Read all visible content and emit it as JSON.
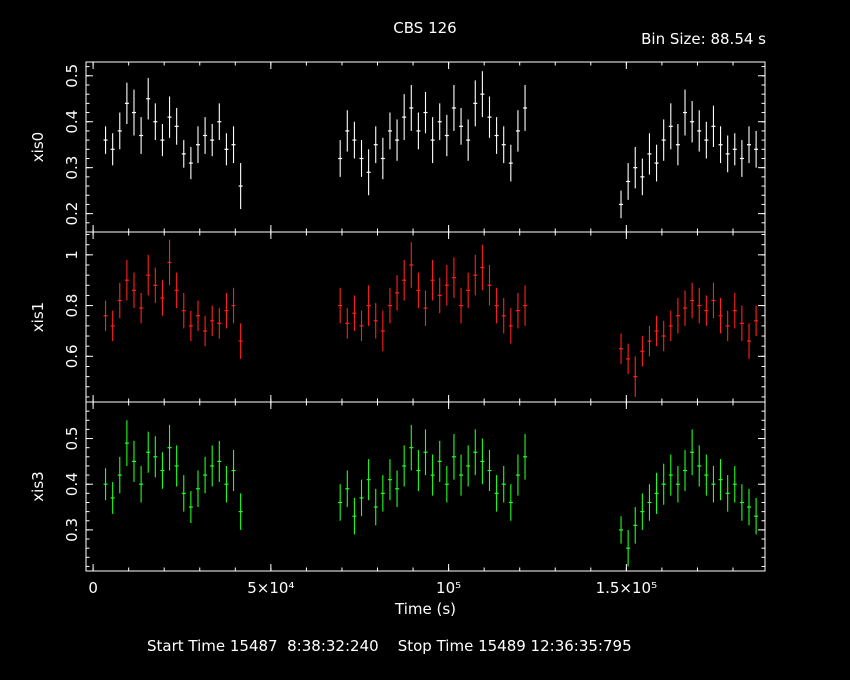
{
  "header": {
    "title": "CBS 126",
    "bin_size": "Bin Size: 88.54 s"
  },
  "footer": {
    "time_info": "Start Time 15487  8:38:32:240    Stop Time 15489 12:36:35:795"
  },
  "colors": {
    "background": "#000000",
    "axes": "#ffffff",
    "xis0": "#ffffff",
    "xis1": "#ff2020",
    "xis3": "#20ff20"
  },
  "chart_data": {
    "type": "scatter",
    "xlabel": "Time (s)",
    "xlim": [
      -2000,
      189000
    ],
    "x_ticks": [
      {
        "value": 0,
        "label": "0"
      },
      {
        "value": 50000,
        "label": "5×10⁴"
      },
      {
        "value": 100000,
        "label": "10⁵"
      },
      {
        "value": 150000,
        "label": "1.5×10⁵"
      }
    ],
    "grid": false,
    "series": [
      {
        "name": "xis0",
        "ylabel": "xis0",
        "ylim": [
          0.16,
          0.53
        ],
        "y_ticks": [
          {
            "value": 0.2,
            "label": "0.2"
          },
          {
            "value": 0.3,
            "label": "0.3"
          },
          {
            "value": 0.4,
            "label": "0.4"
          },
          {
            "value": 0.5,
            "label": "0.5"
          }
        ],
        "points": [
          [
            3500,
            0.36
          ],
          [
            5500,
            0.34
          ],
          [
            7500,
            0.38
          ],
          [
            9500,
            0.44
          ],
          [
            11500,
            0.42
          ],
          [
            13500,
            0.37
          ],
          [
            15500,
            0.45
          ],
          [
            17500,
            0.4
          ],
          [
            19500,
            0.36
          ],
          [
            21500,
            0.41
          ],
          [
            23500,
            0.39
          ],
          [
            25500,
            0.33
          ],
          [
            27500,
            0.31
          ],
          [
            29500,
            0.35
          ],
          [
            31500,
            0.37
          ],
          [
            33500,
            0.36
          ],
          [
            35500,
            0.4
          ],
          [
            37500,
            0.34
          ],
          [
            39500,
            0.35
          ],
          [
            41500,
            0.26
          ],
          [
            69500,
            0.32
          ],
          [
            71500,
            0.38
          ],
          [
            73500,
            0.36
          ],
          [
            75500,
            0.32
          ],
          [
            77500,
            0.29
          ],
          [
            79500,
            0.35
          ],
          [
            81500,
            0.32
          ],
          [
            83500,
            0.38
          ],
          [
            85500,
            0.36
          ],
          [
            87500,
            0.41
          ],
          [
            89500,
            0.43
          ],
          [
            91500,
            0.38
          ],
          [
            93500,
            0.42
          ],
          [
            95500,
            0.36
          ],
          [
            97500,
            0.4
          ],
          [
            99500,
            0.37
          ],
          [
            101500,
            0.43
          ],
          [
            103500,
            0.39
          ],
          [
            105500,
            0.36
          ],
          [
            107500,
            0.44
          ],
          [
            109500,
            0.46
          ],
          [
            111500,
            0.41
          ],
          [
            113500,
            0.37
          ],
          [
            115500,
            0.35
          ],
          [
            117500,
            0.31
          ],
          [
            119500,
            0.38
          ],
          [
            121500,
            0.43
          ],
          [
            148500,
            0.22
          ],
          [
            150500,
            0.27
          ],
          [
            152500,
            0.3
          ],
          [
            154500,
            0.28
          ],
          [
            156500,
            0.33
          ],
          [
            158500,
            0.31
          ],
          [
            160500,
            0.36
          ],
          [
            162500,
            0.39
          ],
          [
            164500,
            0.35
          ],
          [
            166500,
            0.42
          ],
          [
            168500,
            0.4
          ],
          [
            170500,
            0.38
          ],
          [
            172500,
            0.36
          ],
          [
            174500,
            0.39
          ],
          [
            176500,
            0.35
          ],
          [
            178500,
            0.33
          ],
          [
            180500,
            0.34
          ],
          [
            182500,
            0.32
          ],
          [
            184500,
            0.35
          ],
          [
            186500,
            0.34
          ]
        ],
        "errors": [
          0.03,
          0.035,
          0.04,
          0.045,
          0.05,
          0.04,
          0.045,
          0.04,
          0.035,
          0.045,
          0.04,
          0.03,
          0.035,
          0.04,
          0.04,
          0.035,
          0.04,
          0.035,
          0.04,
          0.05,
          0.04,
          0.045,
          0.04,
          0.04,
          0.05,
          0.04,
          0.045,
          0.04,
          0.045,
          0.05,
          0.05,
          0.04,
          0.045,
          0.05,
          0.04,
          0.045,
          0.05,
          0.04,
          0.045,
          0.05,
          0.05,
          0.045,
          0.04,
          0.04,
          0.04,
          0.045,
          0.05,
          0.03,
          0.04,
          0.045,
          0.04,
          0.045,
          0.04,
          0.045,
          0.05,
          0.045,
          0.05,
          0.045,
          0.045,
          0.04,
          0.045,
          0.04,
          0.04,
          0.035,
          0.04,
          0.04,
          0.04
        ]
      },
      {
        "name": "xis1",
        "ylabel": "xis1",
        "ylim": [
          0.42,
          1.09
        ],
        "y_ticks": [
          {
            "value": 0.6,
            "label": "0.6"
          },
          {
            "value": 0.8,
            "label": "0.8"
          },
          {
            "value": 1.0,
            "label": "1"
          }
        ],
        "points": [
          [
            3500,
            0.76
          ],
          [
            5500,
            0.72
          ],
          [
            7500,
            0.82
          ],
          [
            9500,
            0.9
          ],
          [
            11500,
            0.86
          ],
          [
            13500,
            0.79
          ],
          [
            15500,
            0.92
          ],
          [
            17500,
            0.88
          ],
          [
            19500,
            0.83
          ],
          [
            21500,
            0.97
          ],
          [
            23500,
            0.86
          ],
          [
            25500,
            0.78
          ],
          [
            27500,
            0.72
          ],
          [
            29500,
            0.76
          ],
          [
            31500,
            0.7
          ],
          [
            33500,
            0.74
          ],
          [
            35500,
            0.73
          ],
          [
            37500,
            0.78
          ],
          [
            39500,
            0.8
          ],
          [
            41500,
            0.66
          ],
          [
            69500,
            0.8
          ],
          [
            71500,
            0.73
          ],
          [
            73500,
            0.77
          ],
          [
            75500,
            0.72
          ],
          [
            77500,
            0.8
          ],
          [
            79500,
            0.74
          ],
          [
            81500,
            0.7
          ],
          [
            83500,
            0.8
          ],
          [
            85500,
            0.85
          ],
          [
            87500,
            0.9
          ],
          [
            89500,
            0.96
          ],
          [
            91500,
            0.86
          ],
          [
            93500,
            0.79
          ],
          [
            95500,
            0.9
          ],
          [
            97500,
            0.84
          ],
          [
            99500,
            0.88
          ],
          [
            101500,
            0.91
          ],
          [
            103500,
            0.8
          ],
          [
            105500,
            0.86
          ],
          [
            107500,
            0.92
          ],
          [
            109500,
            0.95
          ],
          [
            111500,
            0.88
          ],
          [
            113500,
            0.8
          ],
          [
            115500,
            0.76
          ],
          [
            117500,
            0.72
          ],
          [
            119500,
            0.78
          ],
          [
            121500,
            0.8
          ],
          [
            148500,
            0.63
          ],
          [
            150500,
            0.59
          ],
          [
            152500,
            0.52
          ],
          [
            154500,
            0.62
          ],
          [
            156500,
            0.66
          ],
          [
            158500,
            0.7
          ],
          [
            160500,
            0.68
          ],
          [
            162500,
            0.72
          ],
          [
            164500,
            0.76
          ],
          [
            166500,
            0.79
          ],
          [
            168500,
            0.82
          ],
          [
            170500,
            0.8
          ],
          [
            172500,
            0.78
          ],
          [
            174500,
            0.82
          ],
          [
            176500,
            0.76
          ],
          [
            178500,
            0.72
          ],
          [
            180500,
            0.78
          ],
          [
            182500,
            0.73
          ],
          [
            184500,
            0.66
          ],
          [
            186500,
            0.74
          ]
        ],
        "errors": [
          0.06,
          0.06,
          0.07,
          0.08,
          0.07,
          0.06,
          0.08,
          0.07,
          0.07,
          0.09,
          0.07,
          0.07,
          0.06,
          0.06,
          0.06,
          0.06,
          0.06,
          0.07,
          0.07,
          0.07,
          0.07,
          0.06,
          0.07,
          0.06,
          0.08,
          0.07,
          0.08,
          0.07,
          0.07,
          0.08,
          0.09,
          0.07,
          0.07,
          0.08,
          0.07,
          0.08,
          0.08,
          0.07,
          0.07,
          0.08,
          0.09,
          0.08,
          0.07,
          0.07,
          0.07,
          0.07,
          0.08,
          0.06,
          0.06,
          0.08,
          0.06,
          0.06,
          0.06,
          0.06,
          0.06,
          0.07,
          0.07,
          0.07,
          0.07,
          0.06,
          0.07,
          0.07,
          0.06,
          0.07,
          0.07,
          0.07,
          0.06
        ]
      },
      {
        "name": "xis3",
        "ylabel": "xis3",
        "ylim": [
          0.21,
          0.58
        ],
        "y_ticks": [
          {
            "value": 0.3,
            "label": "0.3"
          },
          {
            "value": 0.4,
            "label": "0.4"
          },
          {
            "value": 0.5,
            "label": "0.5"
          }
        ],
        "points": [
          [
            3500,
            0.4
          ],
          [
            5500,
            0.37
          ],
          [
            7500,
            0.42
          ],
          [
            9500,
            0.49
          ],
          [
            11500,
            0.45
          ],
          [
            13500,
            0.4
          ],
          [
            15500,
            0.47
          ],
          [
            17500,
            0.46
          ],
          [
            19500,
            0.43
          ],
          [
            21500,
            0.48
          ],
          [
            23500,
            0.44
          ],
          [
            25500,
            0.38
          ],
          [
            27500,
            0.35
          ],
          [
            29500,
            0.39
          ],
          [
            31500,
            0.42
          ],
          [
            33500,
            0.44
          ],
          [
            35500,
            0.45
          ],
          [
            37500,
            0.4
          ],
          [
            39500,
            0.43
          ],
          [
            41500,
            0.34
          ],
          [
            69500,
            0.36
          ],
          [
            71500,
            0.39
          ],
          [
            73500,
            0.33
          ],
          [
            75500,
            0.37
          ],
          [
            77500,
            0.41
          ],
          [
            79500,
            0.35
          ],
          [
            81500,
            0.38
          ],
          [
            83500,
            0.41
          ],
          [
            85500,
            0.39
          ],
          [
            87500,
            0.44
          ],
          [
            89500,
            0.48
          ],
          [
            91500,
            0.43
          ],
          [
            93500,
            0.47
          ],
          [
            95500,
            0.42
          ],
          [
            97500,
            0.45
          ],
          [
            99500,
            0.4
          ],
          [
            101500,
            0.46
          ],
          [
            103500,
            0.42
          ],
          [
            105500,
            0.44
          ],
          [
            107500,
            0.47
          ],
          [
            109500,
            0.45
          ],
          [
            111500,
            0.43
          ],
          [
            113500,
            0.38
          ],
          [
            115500,
            0.4
          ],
          [
            117500,
            0.36
          ],
          [
            119500,
            0.42
          ],
          [
            121500,
            0.46
          ],
          [
            148500,
            0.3
          ],
          [
            150500,
            0.26
          ],
          [
            152500,
            0.31
          ],
          [
            154500,
            0.34
          ],
          [
            156500,
            0.36
          ],
          [
            158500,
            0.38
          ],
          [
            160500,
            0.4
          ],
          [
            162500,
            0.42
          ],
          [
            164500,
            0.4
          ],
          [
            166500,
            0.43
          ],
          [
            168500,
            0.47
          ],
          [
            170500,
            0.44
          ],
          [
            172500,
            0.42
          ],
          [
            174500,
            0.4
          ],
          [
            176500,
            0.41
          ],
          [
            178500,
            0.38
          ],
          [
            180500,
            0.4
          ],
          [
            182500,
            0.36
          ],
          [
            184500,
            0.35
          ],
          [
            186500,
            0.33
          ]
        ],
        "errors": [
          0.035,
          0.035,
          0.04,
          0.05,
          0.045,
          0.04,
          0.045,
          0.045,
          0.04,
          0.05,
          0.045,
          0.04,
          0.035,
          0.04,
          0.04,
          0.045,
          0.045,
          0.04,
          0.045,
          0.04,
          0.04,
          0.04,
          0.04,
          0.04,
          0.045,
          0.04,
          0.04,
          0.045,
          0.04,
          0.045,
          0.05,
          0.045,
          0.05,
          0.045,
          0.045,
          0.04,
          0.05,
          0.045,
          0.045,
          0.05,
          0.05,
          0.045,
          0.04,
          0.04,
          0.04,
          0.045,
          0.05,
          0.03,
          0.04,
          0.04,
          0.04,
          0.04,
          0.045,
          0.045,
          0.045,
          0.04,
          0.045,
          0.05,
          0.045,
          0.045,
          0.04,
          0.045,
          0.04,
          0.04,
          0.04,
          0.04,
          0.04
        ]
      }
    ]
  }
}
